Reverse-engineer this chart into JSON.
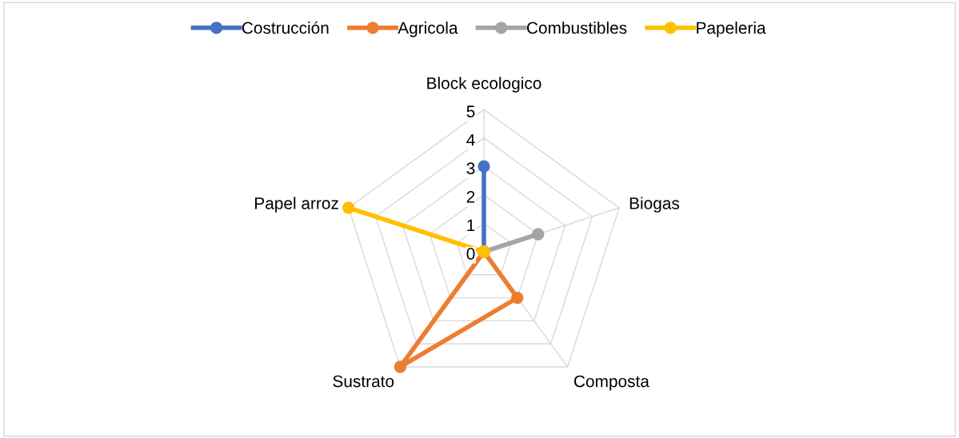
{
  "chart_data": {
    "type": "radar",
    "categories": [
      "Block ecologico",
      "Biogas",
      "Composta",
      "Sustrato",
      "Papel arroz"
    ],
    "series": [
      {
        "name": "Costrucción",
        "color": "#4472c4",
        "values": [
          3,
          0,
          0,
          0,
          0
        ]
      },
      {
        "name": "Agricola",
        "color": "#ed7d31",
        "values": [
          0,
          0,
          2,
          5,
          0
        ]
      },
      {
        "name": "Combustibles",
        "color": "#a5a5a5",
        "values": [
          0,
          2,
          0,
          0,
          0
        ]
      },
      {
        "name": "Papeleria",
        "color": "#ffc000",
        "values": [
          0,
          0,
          0,
          0,
          5
        ]
      }
    ],
    "ylim": [
      0,
      5
    ],
    "yticks": [
      0,
      1,
      2,
      3,
      4,
      5
    ],
    "grid": true,
    "legend": "top",
    "marker": "circle",
    "line_style": "solid"
  }
}
